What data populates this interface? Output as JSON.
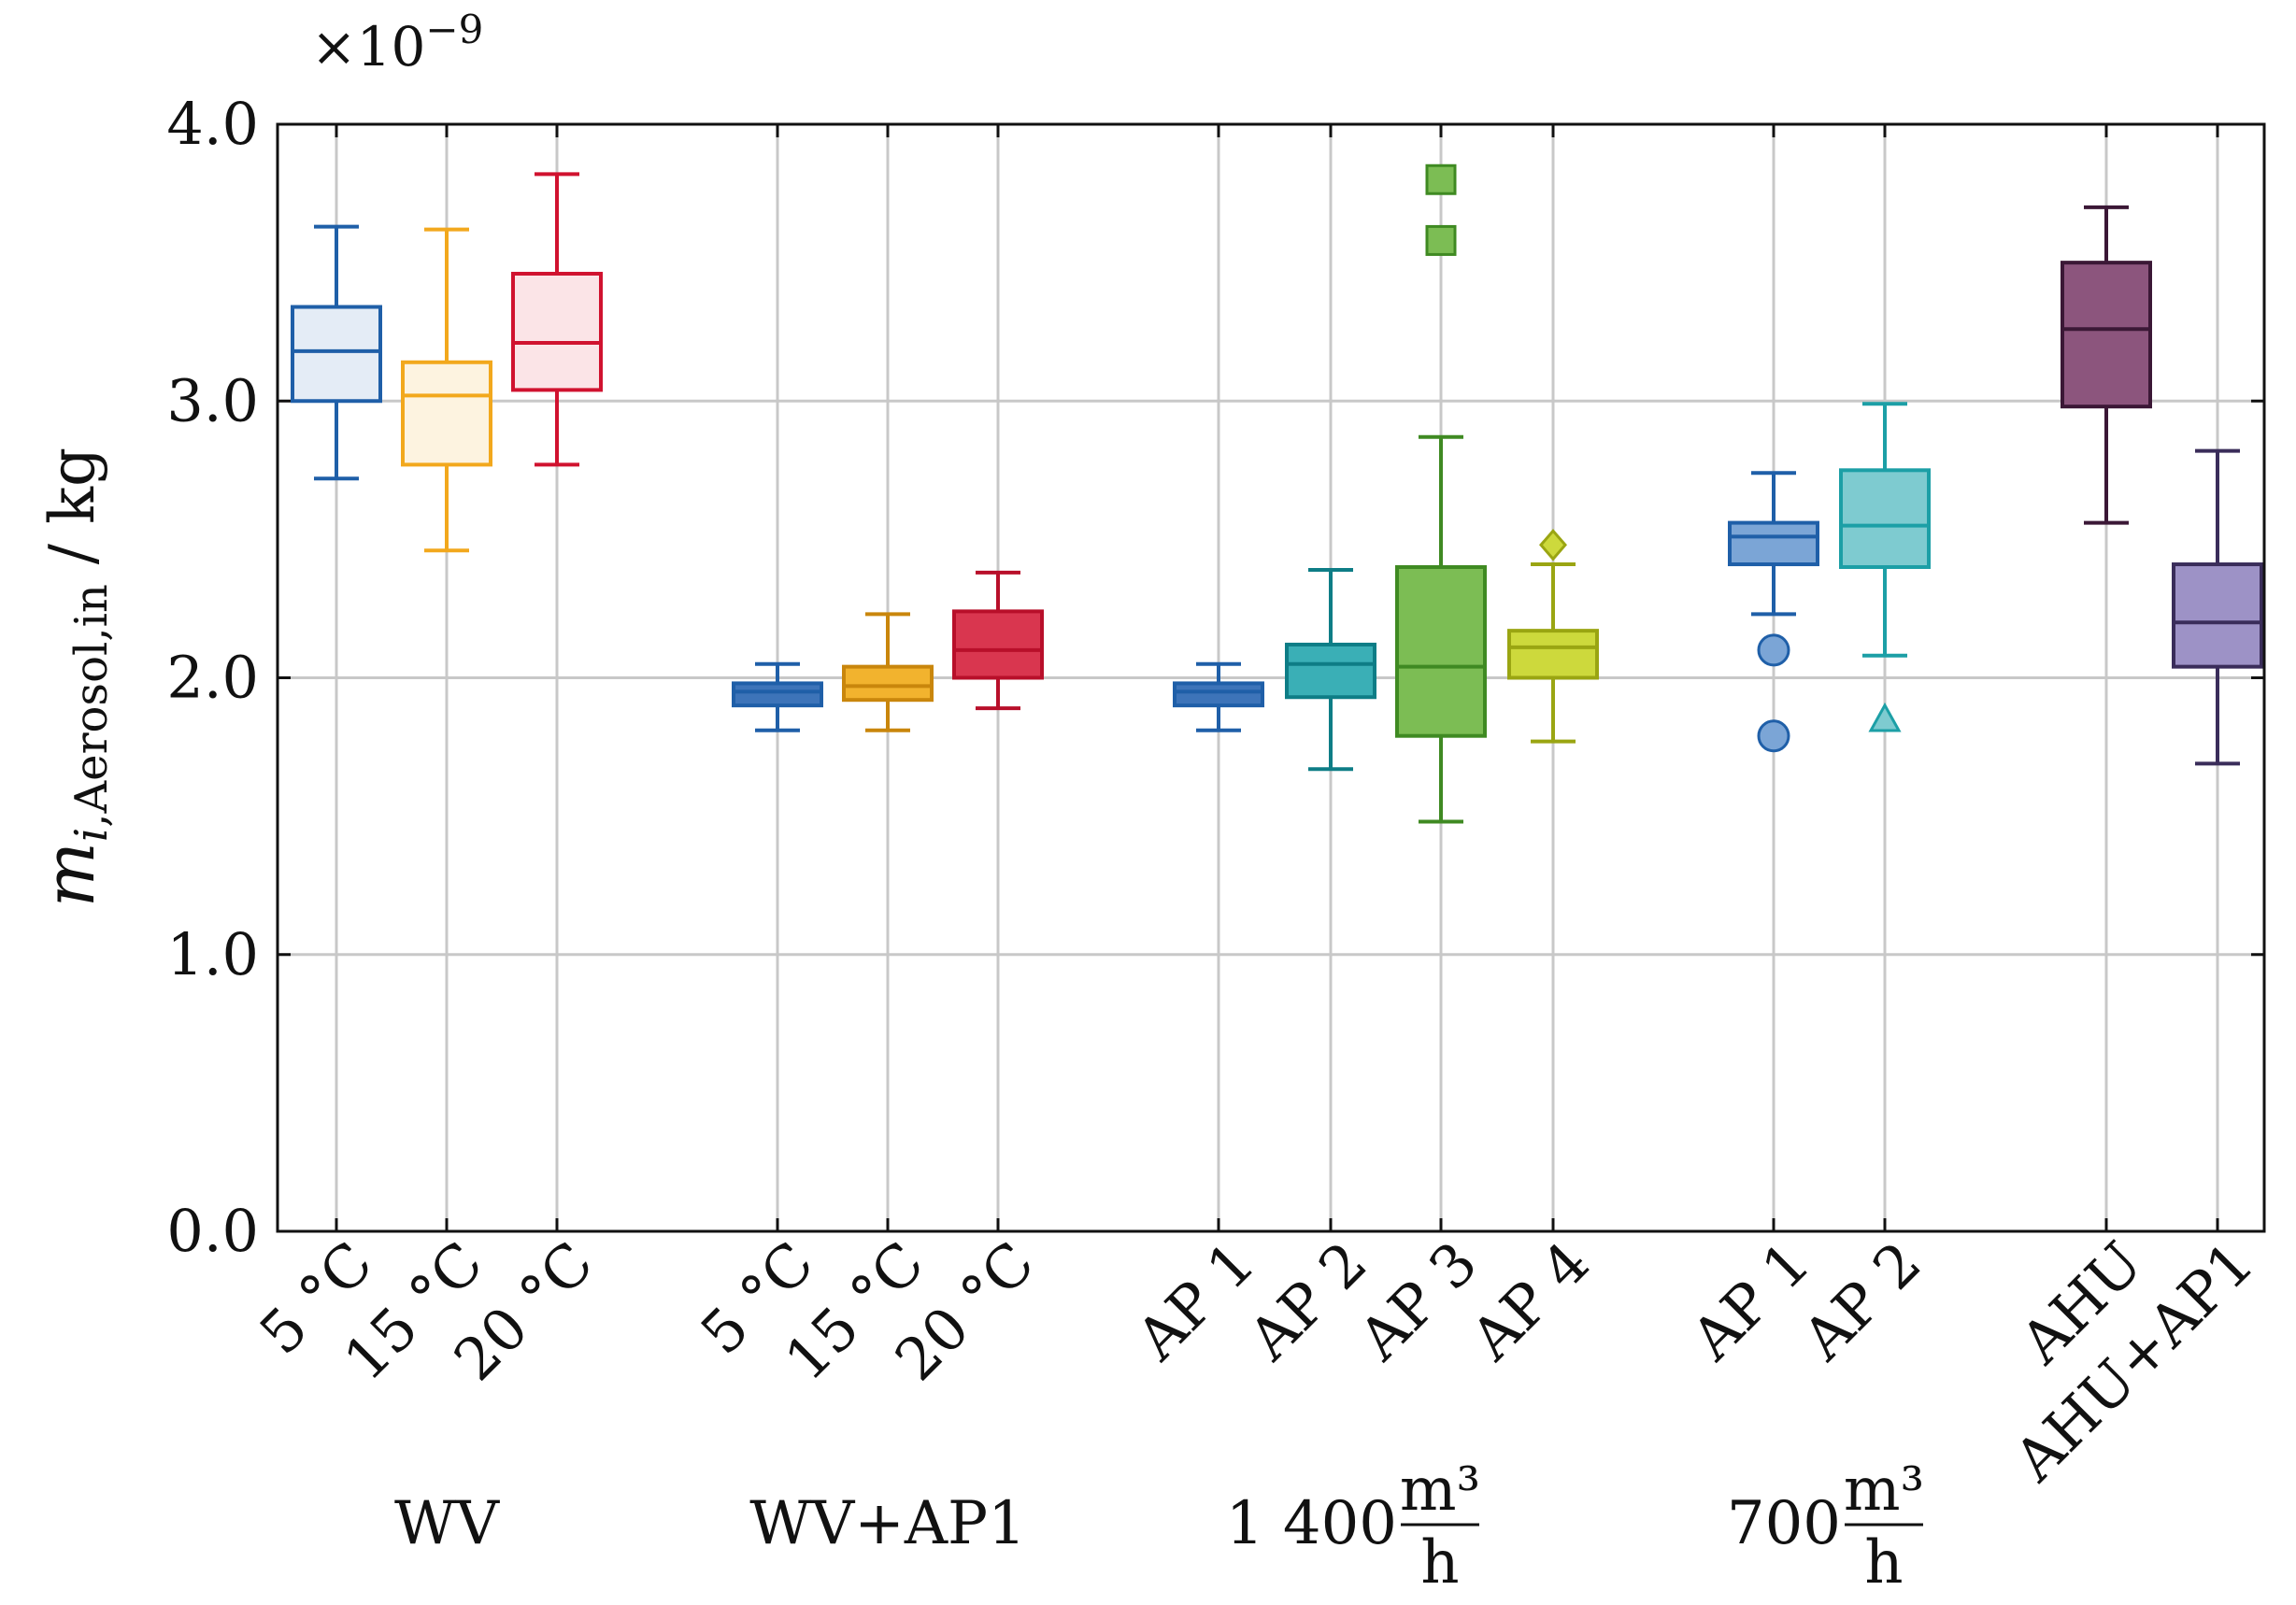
{
  "chart_data": {
    "type": "box",
    "ylabel": {
      "var": "m",
      "sub_var": "i",
      "sub_text": ",Aerosol,in",
      "unit": " / kg"
    },
    "exponent": {
      "prefix": "×10",
      "power": "−9"
    },
    "ylim": [
      0.0,
      4.0
    ],
    "yticks": [
      "0.0",
      "1.0",
      "2.0",
      "3.0",
      "4.0"
    ],
    "grid": true,
    "groups": [
      {
        "label": "WV",
        "unit_num": "",
        "unit_den": ""
      },
      {
        "label": "WV+AP1",
        "unit_num": "",
        "unit_den": ""
      },
      {
        "label": "1 400",
        "unit_num": "m³",
        "unit_den": "h"
      },
      {
        "label": "700",
        "unit_num": "m³",
        "unit_den": "h"
      },
      {
        "label": "",
        "unit_num": "",
        "unit_den": ""
      }
    ],
    "boxes": [
      {
        "label": "5 °C",
        "group": 0,
        "color": "#1f5fa8",
        "fill": "#e4ecf6",
        "whisker_low": 2.72,
        "q1": 3.0,
        "median": 3.18,
        "q3": 3.34,
        "whisker_high": 3.63,
        "outliers": []
      },
      {
        "label": "15 °C",
        "group": 0,
        "color": "#f2a81d",
        "fill": "#fdf3e0",
        "whisker_low": 2.46,
        "q1": 2.77,
        "median": 3.02,
        "q3": 3.14,
        "whisker_high": 3.62,
        "outliers": []
      },
      {
        "label": "20 °C",
        "group": 0,
        "color": "#d0122f",
        "fill": "#fbe4e7",
        "whisker_low": 2.77,
        "q1": 3.04,
        "median": 3.21,
        "q3": 3.46,
        "whisker_high": 3.82,
        "outliers": []
      },
      {
        "label": "5 °C",
        "group": 1,
        "color": "#1f5fa8",
        "fill": "#3d74b9",
        "whisker_low": 1.81,
        "q1": 1.9,
        "median": 1.95,
        "q3": 1.98,
        "whisker_high": 2.05,
        "outliers": []
      },
      {
        "label": "15 °C",
        "group": 1,
        "color": "#c9860c",
        "fill": "#f2b32e",
        "whisker_low": 1.81,
        "q1": 1.92,
        "median": 1.97,
        "q3": 2.04,
        "whisker_high": 2.23,
        "outliers": []
      },
      {
        "label": "20 °C",
        "group": 1,
        "color": "#b80f2a",
        "fill": "#d9364f",
        "whisker_low": 1.89,
        "q1": 2.0,
        "median": 2.1,
        "q3": 2.24,
        "whisker_high": 2.38,
        "outliers": []
      },
      {
        "label": "AP 1",
        "group": 2,
        "color": "#1f5fa8",
        "fill": "#3d74b9",
        "whisker_low": 1.81,
        "q1": 1.9,
        "median": 1.95,
        "q3": 1.98,
        "whisker_high": 2.05,
        "outliers": []
      },
      {
        "label": "AP 2",
        "group": 2,
        "color": "#0e7d86",
        "fill": "#3aafb6",
        "whisker_low": 1.67,
        "q1": 1.93,
        "median": 2.05,
        "q3": 2.12,
        "whisker_high": 2.39,
        "outliers": []
      },
      {
        "label": "AP 3",
        "group": 2,
        "color": "#3f8a22",
        "fill": "#7cbd54",
        "whisker_low": 1.48,
        "q1": 1.79,
        "median": 2.04,
        "q3": 2.4,
        "whisker_high": 2.87,
        "outliers": [
          3.58,
          3.8
        ],
        "marker": "square"
      },
      {
        "label": "AP 4",
        "group": 2,
        "color": "#9aa512",
        "fill": "#cdd93c",
        "whisker_low": 1.77,
        "q1": 2.0,
        "median": 2.11,
        "q3": 2.17,
        "whisker_high": 2.41,
        "outliers": [
          2.48
        ],
        "marker": "diamond"
      },
      {
        "label": "AP 1",
        "group": 3,
        "color": "#1f5fa8",
        "fill": "#7ba5d6",
        "whisker_low": 2.23,
        "q1": 2.41,
        "median": 2.51,
        "q3": 2.56,
        "whisker_high": 2.74,
        "outliers": [
          1.79,
          2.1
        ],
        "marker": "circle"
      },
      {
        "label": "AP 2",
        "group": 3,
        "color": "#1c9fa6",
        "fill": "#7ecbd0",
        "whisker_low": 2.08,
        "q1": 2.4,
        "median": 2.55,
        "q3": 2.75,
        "whisker_high": 2.99,
        "outliers": [
          1.85
        ],
        "marker": "triangle"
      },
      {
        "label": "AHU",
        "group": 4,
        "color": "#3b1836",
        "fill": "#8c557d",
        "whisker_low": 2.56,
        "q1": 2.98,
        "median": 3.26,
        "q3": 3.5,
        "whisker_high": 3.7,
        "outliers": []
      },
      {
        "label": "AHU+AP1",
        "group": 4,
        "color": "#3a2d5a",
        "fill": "#9d92c6",
        "whisker_low": 1.69,
        "q1": 2.04,
        "median": 2.2,
        "q3": 2.41,
        "whisker_high": 2.82,
        "outliers": []
      }
    ]
  }
}
